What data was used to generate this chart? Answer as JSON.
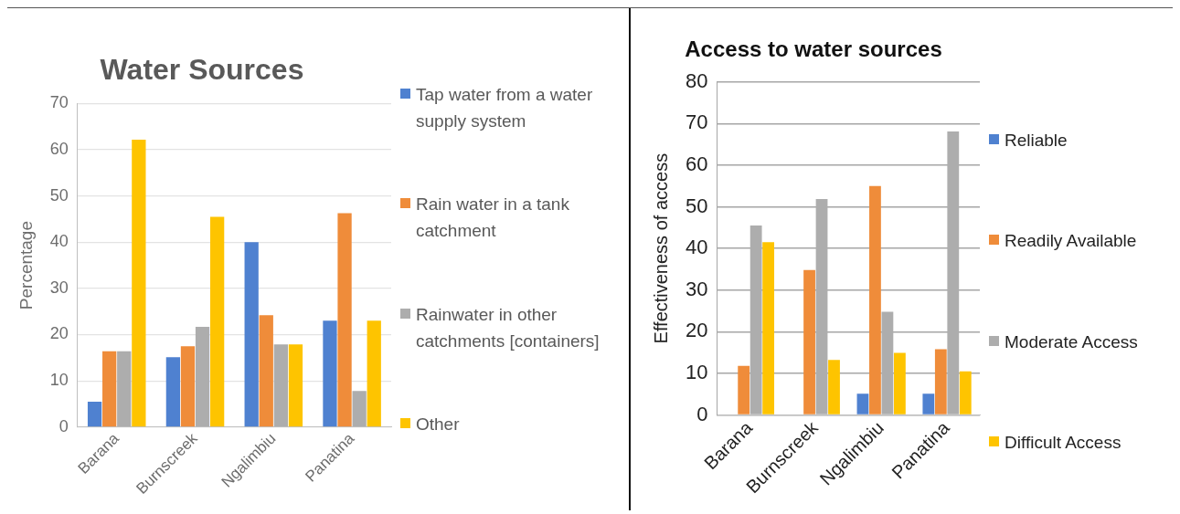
{
  "chart_data": [
    {
      "type": "bar",
      "title": "Water Sources",
      "ylabel": "Percentage",
      "categories": [
        "Barana",
        "Burnscreek",
        "Ngalimbiu",
        "Panatina"
      ],
      "series": [
        {
          "name": "Tap water from a water supply system",
          "color": "#4f81d0",
          "values": [
            5.5,
            15.1,
            40,
            23
          ]
        },
        {
          "name": "Rain water in a tank catchment",
          "color": "#ef8c3a",
          "values": [
            16.4,
            17.5,
            24.2,
            46.3
          ]
        },
        {
          "name": "Rainwater in other catchments [containers]",
          "color": "#adadad",
          "values": [
            16.4,
            21.7,
            17.9,
            7.8
          ]
        },
        {
          "name": "Other",
          "color": "#fec400",
          "values": [
            62.2,
            45.5,
            17.9,
            23
          ]
        }
      ],
      "ylim": [
        0,
        70
      ],
      "yticks": [
        0,
        10,
        20,
        30,
        40,
        50,
        60,
        70
      ],
      "grid": "y",
      "legend": "right"
    },
    {
      "type": "bar",
      "title": "Access to water sources",
      "ylabel": "Effectiveness of access",
      "categories": [
        "Barana",
        "Burnscreek",
        "Ngalimbiu",
        "Panatina"
      ],
      "series": [
        {
          "name": "Reliable",
          "color": "#4f81d0",
          "values": [
            0,
            0,
            5.1,
            5.1
          ]
        },
        {
          "name": "Readily Available",
          "color": "#ef8c3a",
          "values": [
            11.8,
            34.8,
            55,
            15.8
          ]
        },
        {
          "name": "Moderate Access",
          "color": "#adadad",
          "values": [
            45.5,
            51.9,
            24.8,
            68.1
          ]
        },
        {
          "name": "Difficult Access",
          "color": "#fec400",
          "values": [
            41.5,
            13.2,
            14.9,
            10.5
          ]
        }
      ],
      "ylim": [
        0,
        80
      ],
      "yticks": [
        0,
        10,
        20,
        30,
        40,
        50,
        60,
        70,
        80
      ],
      "grid": "y",
      "legend": "right"
    }
  ]
}
